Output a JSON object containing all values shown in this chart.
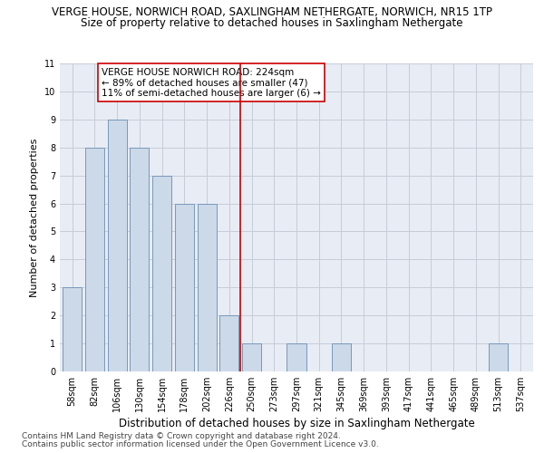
{
  "title": "VERGE HOUSE, NORWICH ROAD, SAXLINGHAM NETHERGATE, NORWICH, NR15 1TP",
  "subtitle": "Size of property relative to detached houses in Saxlingham Nethergate",
  "xlabel": "Distribution of detached houses by size in Saxlingham Nethergate",
  "ylabel": "Number of detached properties",
  "categories": [
    "58sqm",
    "82sqm",
    "106sqm",
    "130sqm",
    "154sqm",
    "178sqm",
    "202sqm",
    "226sqm",
    "250sqm",
    "273sqm",
    "297sqm",
    "321sqm",
    "345sqm",
    "369sqm",
    "393sqm",
    "417sqm",
    "441sqm",
    "465sqm",
    "489sqm",
    "513sqm",
    "537sqm"
  ],
  "values": [
    3,
    8,
    9,
    8,
    7,
    6,
    6,
    2,
    1,
    0,
    1,
    0,
    1,
    0,
    0,
    0,
    0,
    0,
    0,
    1,
    0
  ],
  "bar_color": "#ccd9e8",
  "bar_edge_color": "#7799bb",
  "vline_x": 7.5,
  "vline_color": "#cc0000",
  "annotation_text": "VERGE HOUSE NORWICH ROAD: 224sqm\n← 89% of detached houses are smaller (47)\n11% of semi-detached houses are larger (6) →",
  "annotation_box_color": "white",
  "annotation_box_edge": "#cc0000",
  "ylim": [
    0,
    11
  ],
  "yticks": [
    0,
    1,
    2,
    3,
    4,
    5,
    6,
    7,
    8,
    9,
    10,
    11
  ],
  "grid_color": "#c8ccd8",
  "bg_color": "#e8ecf4",
  "footer1": "Contains HM Land Registry data © Crown copyright and database right 2024.",
  "footer2": "Contains public sector information licensed under the Open Government Licence v3.0.",
  "title_fontsize": 8.5,
  "subtitle_fontsize": 8.5,
  "xlabel_fontsize": 8.5,
  "ylabel_fontsize": 8,
  "tick_fontsize": 7,
  "footer_fontsize": 6.5,
  "annot_fontsize": 7.5
}
